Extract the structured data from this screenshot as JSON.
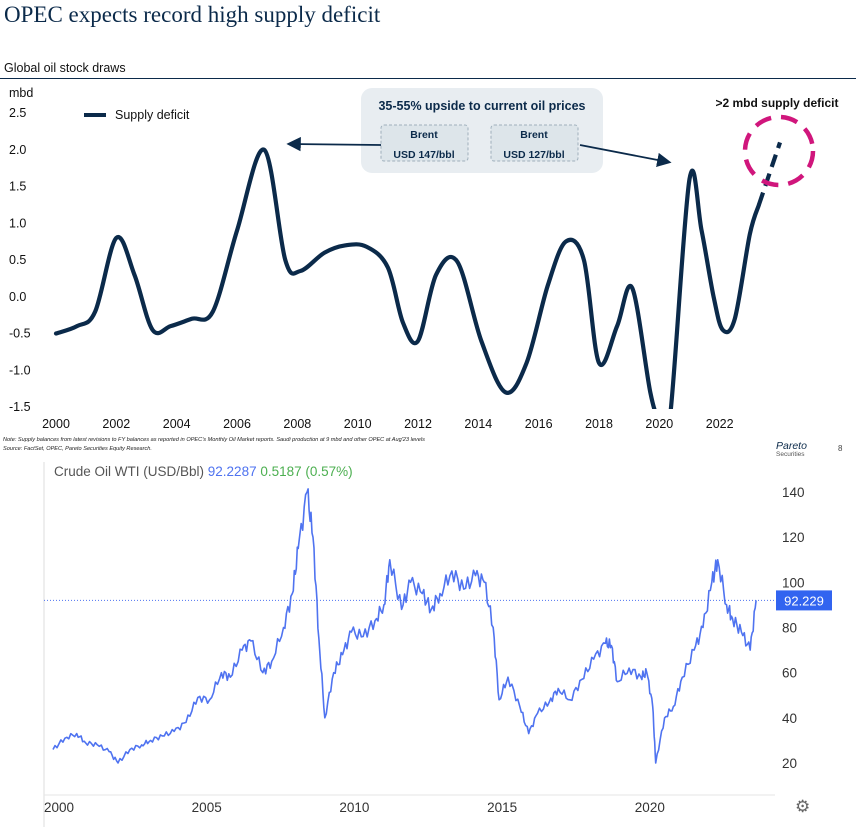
{
  "header": {
    "title": "OPEC expects record high supply deficit",
    "subtitle": "Global oil stock draws"
  },
  "footer": {
    "note": "Note: Supply balances from latest revisions to FY balances as reported in OPEC's Monthly Oil Market reports. Saudi production at 9 mbd and other OPEC at Aug'23 levels",
    "source": "Source: FactSet, OPEC, Pareto Securities Equity Research.",
    "logo": "Pareto",
    "logo_sub": "Securities",
    "page": "8"
  },
  "colors": {
    "deficit_line": "#0b2a4a",
    "circle": "#d0167c",
    "wti_line": "#4f73f0",
    "wti_badge": "#3264f0",
    "change": "#4caf50"
  },
  "icons": {
    "settings": "gear-icon"
  },
  "chart_data": [
    {
      "type": "line",
      "title": "OPEC expects record high supply deficit",
      "subtitle": "Global oil stock draws",
      "ylabel": "mbd",
      "xlabel": "",
      "ylim": [
        -1.5,
        2.5
      ],
      "xlim": [
        2000,
        2024
      ],
      "yticks": [
        "2.5",
        "2.0",
        "1.5",
        "1.0",
        "0.5",
        "0.0",
        "-0.5",
        "-1.0",
        "-1.5"
      ],
      "xticks": [
        "2000",
        "2002",
        "2004",
        "2006",
        "2008",
        "2010",
        "2012",
        "2014",
        "2016",
        "2018",
        "2020",
        "2022"
      ],
      "legend": {
        "label": "Supply deficit",
        "position": "top-left"
      },
      "grid": false,
      "series": [
        {
          "name": "Supply deficit",
          "x": [
            2000,
            2000.7,
            2001.3,
            2002,
            2002.6,
            2003.2,
            2003.8,
            2004.5,
            2005.2,
            2006,
            2006.9,
            2007.6,
            2008.1,
            2008.9,
            2009.6,
            2010.3,
            2011,
            2011.5,
            2012,
            2012.6,
            2013.3,
            2014.1,
            2014.9,
            2015.6,
            2016.3,
            2016.9,
            2017.5,
            2018,
            2018.6,
            2019.1,
            2019.7,
            2020,
            2020.35,
            2021,
            2021.4,
            2021.8,
            2022.1,
            2022.5,
            2023,
            2023.3
          ],
          "y": [
            -0.5,
            -0.4,
            -0.2,
            0.8,
            0.3,
            -0.45,
            -0.4,
            -0.3,
            -0.2,
            0.9,
            2.0,
            0.5,
            0.35,
            0.6,
            0.7,
            0.68,
            0.4,
            -0.35,
            -0.6,
            0.3,
            0.48,
            -0.6,
            -1.3,
            -0.9,
            0.15,
            0.75,
            0.5,
            -0.9,
            -0.4,
            0.12,
            -1.3,
            -1.65,
            -1.65,
            1.6,
            0.9,
            0.0,
            -0.45,
            -0.3,
            0.85,
            1.25
          ]
        },
        {
          "name": "projection",
          "dashed": true,
          "x": [
            2023.3,
            2024
          ],
          "y": [
            1.25,
            2.1
          ]
        }
      ],
      "annotations": {
        "box_title": "35-55% upside to current oil prices",
        "brent_labels": [
          "Brent",
          "Brent"
        ],
        "brent_values": [
          "USD 147/bbl",
          "USD 127/bbl"
        ],
        "deficit_label": ">2 mbd supply deficit"
      }
    },
    {
      "type": "line",
      "title": "Crude Oil WTI (USD/Bbl)",
      "last_value": "92.2287",
      "change": "0.5187 (0.57%)",
      "badge": "92.229",
      "ylim": [
        10,
        150
      ],
      "xlim": [
        2000,
        2024
      ],
      "yticks": [
        "140",
        "120",
        "100",
        "80",
        "60",
        "40",
        "20"
      ],
      "xticks": [
        "2000",
        "2005",
        "2010",
        "2015",
        "2020"
      ],
      "series": [
        {
          "name": "Crude Oil WTI",
          "x": [
            1999.9,
            2000.3,
            2000.7,
            2001,
            2001.4,
            2001.8,
            2002.1,
            2002.5,
            2002.9,
            2003.2,
            2003.6,
            2004,
            2004.4,
            2004.8,
            2005.2,
            2005.6,
            2005.9,
            2006.3,
            2006.6,
            2007,
            2007.3,
            2007.7,
            2008,
            2008.2,
            2008.5,
            2008.7,
            2008.9,
            2009.1,
            2009.4,
            2009.7,
            2010,
            2010.4,
            2010.8,
            2011.1,
            2011.3,
            2011.7,
            2012,
            2012.4,
            2012.7,
            2013,
            2013.4,
            2013.8,
            2014.2,
            2014.5,
            2014.8,
            2015,
            2015.3,
            2015.7,
            2016,
            2016.3,
            2016.7,
            2017,
            2017.4,
            2017.8,
            2018.2,
            2018.6,
            2018.8,
            2019,
            2019.4,
            2019.8,
            2020,
            2020.2,
            2020.3,
            2020.6,
            2020.9,
            2021.2,
            2021.6,
            2021.9,
            2022.2,
            2022.4,
            2022.7,
            2022.9,
            2023.2,
            2023.5,
            2023.7
          ],
          "y": [
            26,
            31,
            33,
            29,
            28,
            25,
            20,
            26,
            28,
            30,
            32,
            34,
            38,
            49,
            48,
            60,
            58,
            70,
            74,
            60,
            65,
            80,
            95,
            115,
            140,
            120,
            75,
            40,
            60,
            68,
            78,
            76,
            83,
            90,
            110,
            88,
            100,
            95,
            88,
            95,
            105,
            97,
            103,
            100,
            80,
            48,
            58,
            45,
            33,
            42,
            47,
            53,
            48,
            57,
            66,
            73,
            72,
            56,
            62,
            58,
            60,
            45,
            20,
            40,
            45,
            58,
            70,
            80,
            100,
            110,
            90,
            84,
            78,
            70,
            92
          ]
        }
      ]
    }
  ]
}
